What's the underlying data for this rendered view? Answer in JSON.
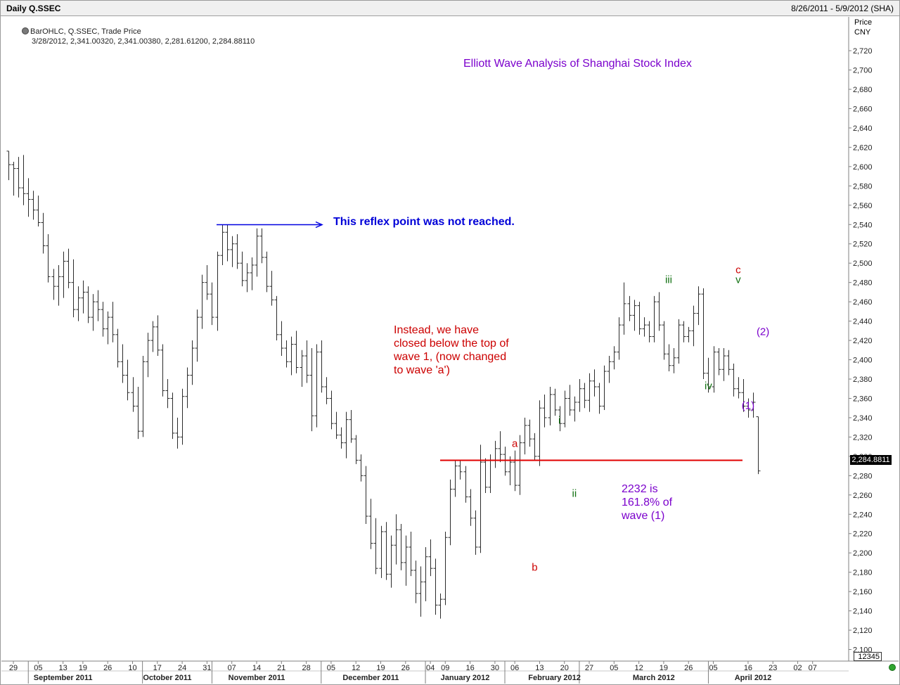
{
  "window": {
    "chart_name": "Daily Q.SSEC",
    "date_range": "8/26/2011 - 5/9/2012 (SHA)"
  },
  "legend": {
    "series": "BarOHLC, Q.SSEC, Trade Price",
    "values": "3/28/2012, 2,341.00320, 2,341.00380, 2,281.61200, 2,284.88110"
  },
  "price_axis": {
    "header": "Price\nCNY",
    "last_price": "2,284.8811",
    "volume_box": "12345"
  },
  "annotations": {
    "title": "Elliott Wave Analysis of Shanghai Stock Index",
    "reflex": "This reflex point was not reached.",
    "instead": "Instead, we have\nclosed below the top of\nwave 1, (now changed\nto wave 'a')",
    "target": "2232 is\n161.8% of\nwave (1)"
  },
  "wave_labels": [
    {
      "text": "a",
      "color": "red",
      "x_index": 102,
      "price": 2313
    },
    {
      "text": "b",
      "color": "red",
      "x_index": 106,
      "price": 2185
    },
    {
      "text": "c",
      "color": "red",
      "x_index": 147,
      "price": 2493
    },
    {
      "text": "i",
      "color": "green",
      "x_index": 111,
      "price": 2337
    },
    {
      "text": "ii",
      "color": "green",
      "x_index": 114,
      "price": 2261
    },
    {
      "text": "iii",
      "color": "green",
      "x_index": 133,
      "price": 2483
    },
    {
      "text": "iv",
      "color": "green",
      "x_index": 141,
      "price": 2373
    },
    {
      "text": "v",
      "color": "green",
      "x_index": 147,
      "price": 2483
    },
    {
      "text": "(1)",
      "color": "purple",
      "x_index": 149,
      "price": 2352
    },
    {
      "text": "(2)",
      "color": "purple",
      "x_index": 152,
      "price": 2429
    }
  ],
  "chart_data": {
    "type": "bar",
    "subtype": "OHLC",
    "ylabel": "Price CNY",
    "ylim": [
      2088,
      2755
    ],
    "y_ticks": [
      2100,
      2120,
      2140,
      2160,
      2180,
      2200,
      2220,
      2240,
      2260,
      2280,
      2300,
      2320,
      2340,
      2360,
      2380,
      2400,
      2420,
      2440,
      2460,
      2480,
      2500,
      2520,
      2540,
      2560,
      2580,
      2600,
      2620,
      2640,
      2660,
      2680,
      2700,
      2720
    ],
    "y_tick_labels": [
      "2,100",
      "2,120",
      "2,140",
      "2,160",
      "2,180",
      "2,200",
      "2,220",
      "2,240",
      "2,260",
      "2,280",
      "2,300",
      "2,320",
      "2,340",
      "2,360",
      "2,380",
      "2,400",
      "2,420",
      "2,440",
      "2,460",
      "2,480",
      "2,500",
      "2,520",
      "2,540",
      "2,560",
      "2,580",
      "2,600",
      "2,620",
      "2,640",
      "2,660",
      "2,680",
      "2,700",
      "2,720"
    ],
    "x_day_ticks": [
      {
        "label": "29",
        "index": 1
      },
      {
        "label": "05",
        "index": 6
      },
      {
        "label": "13",
        "index": 11
      },
      {
        "label": "19",
        "index": 15
      },
      {
        "label": "26",
        "index": 20
      },
      {
        "label": "10",
        "index": 25
      },
      {
        "label": "17",
        "index": 30
      },
      {
        "label": "24",
        "index": 35
      },
      {
        "label": "31",
        "index": 40
      },
      {
        "label": "07",
        "index": 45
      },
      {
        "label": "14",
        "index": 50
      },
      {
        "label": "21",
        "index": 55
      },
      {
        "label": "28",
        "index": 60
      },
      {
        "label": "05",
        "index": 65
      },
      {
        "label": "12",
        "index": 70
      },
      {
        "label": "19",
        "index": 75
      },
      {
        "label": "26",
        "index": 80
      },
      {
        "label": "04",
        "index": 85
      },
      {
        "label": "09",
        "index": 88
      },
      {
        "label": "16",
        "index": 93
      },
      {
        "label": "30",
        "index": 98
      },
      {
        "label": "06",
        "index": 102
      },
      {
        "label": "13",
        "index": 107
      },
      {
        "label": "20",
        "index": 112
      },
      {
        "label": "27",
        "index": 117
      },
      {
        "label": "05",
        "index": 122
      },
      {
        "label": "12",
        "index": 127
      },
      {
        "label": "19",
        "index": 132
      },
      {
        "label": "26",
        "index": 137
      },
      {
        "label": "05",
        "index": 142
      },
      {
        "label": "16",
        "index": 149
      },
      {
        "label": "23",
        "index": 154
      },
      {
        "label": "02",
        "index": 159
      },
      {
        "label": "07",
        "index": 162
      }
    ],
    "x_month_labels": [
      {
        "label": "September 2011",
        "index": 11
      },
      {
        "label": "October 2011",
        "index": 32
      },
      {
        "label": "November 2011",
        "index": 50
      },
      {
        "label": "December 2011",
        "index": 73
      },
      {
        "label": "January 2012",
        "index": 92
      },
      {
        "label": "February 2012",
        "index": 110
      },
      {
        "label": "March 2012",
        "index": 130
      },
      {
        "label": "April 2012",
        "index": 150
      }
    ],
    "x_month_separators": [
      4,
      27,
      41,
      63,
      84,
      100,
      115,
      141
    ],
    "horizontal_levels": [
      {
        "name": "wave-a-top",
        "price": 2296,
        "from_index": 84,
        "to_index": 158,
        "color": "#e00000"
      },
      {
        "name": "reflex-point",
        "price": 2540,
        "from_index": 41,
        "to_index": 61,
        "color": "#0000e0"
      }
    ],
    "bars": [
      [
        2616,
        2586,
        2616,
        2602
      ],
      [
        2602,
        2570,
        2605,
        2598
      ],
      [
        2598,
        2568,
        2610,
        2578
      ],
      [
        2578,
        2560,
        2612,
        2572
      ],
      [
        2572,
        2548,
        2588,
        2566
      ],
      [
        2566,
        2545,
        2575,
        2555
      ],
      [
        2555,
        2538,
        2570,
        2542
      ],
      [
        2542,
        2510,
        2552,
        2518
      ],
      [
        2518,
        2480,
        2530,
        2486
      ],
      [
        2486,
        2462,
        2494,
        2476
      ],
      [
        2476,
        2456,
        2498,
        2486
      ],
      [
        2486,
        2464,
        2512,
        2502
      ],
      [
        2502,
        2474,
        2515,
        2480
      ],
      [
        2480,
        2444,
        2504,
        2452
      ],
      [
        2452,
        2440,
        2476,
        2464
      ],
      [
        2464,
        2448,
        2482,
        2470
      ],
      [
        2470,
        2438,
        2476,
        2444
      ],
      [
        2444,
        2430,
        2468,
        2460
      ],
      [
        2460,
        2440,
        2472,
        2452
      ],
      [
        2452,
        2424,
        2460,
        2432
      ],
      [
        2432,
        2416,
        2450,
        2444
      ],
      [
        2444,
        2418,
        2460,
        2426
      ],
      [
        2426,
        2392,
        2432,
        2398
      ],
      [
        2398,
        2376,
        2416,
        2384
      ],
      [
        2384,
        2358,
        2400,
        2366
      ],
      [
        2366,
        2346,
        2382,
        2352
      ],
      [
        2352,
        2318,
        2372,
        2326
      ],
      [
        2326,
        2320,
        2404,
        2398
      ],
      [
        2398,
        2382,
        2428,
        2420
      ],
      [
        2420,
        2408,
        2440,
        2434
      ],
      [
        2434,
        2404,
        2446,
        2410
      ],
      [
        2410,
        2362,
        2416,
        2368
      ],
      [
        2368,
        2350,
        2380,
        2360
      ],
      [
        2360,
        2318,
        2366,
        2324
      ],
      [
        2324,
        2308,
        2340,
        2320
      ],
      [
        2320,
        2312,
        2370,
        2362
      ],
      [
        2362,
        2350,
        2392,
        2384
      ],
      [
        2384,
        2374,
        2420,
        2412
      ],
      [
        2412,
        2398,
        2452,
        2444
      ],
      [
        2444,
        2432,
        2488,
        2480
      ],
      [
        2480,
        2462,
        2498,
        2468
      ],
      [
        2468,
        2436,
        2480,
        2444
      ],
      [
        2444,
        2430,
        2512,
        2508
      ],
      [
        2508,
        2498,
        2540,
        2532
      ],
      [
        2532,
        2502,
        2540,
        2514
      ],
      [
        2514,
        2496,
        2528,
        2520
      ],
      [
        2520,
        2494,
        2530,
        2500
      ],
      [
        2500,
        2476,
        2512,
        2482
      ],
      [
        2482,
        2470,
        2500,
        2490
      ],
      [
        2490,
        2472,
        2506,
        2498
      ],
      [
        2498,
        2486,
        2536,
        2528
      ],
      [
        2528,
        2500,
        2536,
        2506
      ],
      [
        2506,
        2470,
        2512,
        2476
      ],
      [
        2476,
        2456,
        2492,
        2462
      ],
      [
        2462,
        2420,
        2466,
        2426
      ],
      [
        2426,
        2404,
        2440,
        2412
      ],
      [
        2412,
        2392,
        2420,
        2398
      ],
      [
        2398,
        2384,
        2424,
        2416
      ],
      [
        2416,
        2386,
        2430,
        2392
      ],
      [
        2392,
        2372,
        2410,
        2404
      ],
      [
        2404,
        2376,
        2420,
        2384
      ],
      [
        2384,
        2326,
        2412,
        2342
      ],
      [
        2342,
        2330,
        2416,
        2408
      ],
      [
        2408,
        2366,
        2420,
        2372
      ],
      [
        2372,
        2354,
        2382,
        2360
      ],
      [
        2360,
        2328,
        2368,
        2334
      ],
      [
        2334,
        2318,
        2346,
        2322
      ],
      [
        2322,
        2308,
        2330,
        2314
      ],
      [
        2314,
        2298,
        2346,
        2338
      ],
      [
        2338,
        2314,
        2348,
        2318
      ],
      [
        2318,
        2292,
        2322,
        2296
      ],
      [
        2296,
        2274,
        2302,
        2280
      ],
      [
        2280,
        2230,
        2290,
        2238
      ],
      [
        2238,
        2204,
        2256,
        2210
      ],
      [
        2210,
        2178,
        2236,
        2184
      ],
      [
        2184,
        2174,
        2228,
        2222
      ],
      [
        2222,
        2172,
        2232,
        2178
      ],
      [
        2178,
        2164,
        2218,
        2208
      ],
      [
        2208,
        2188,
        2240,
        2224
      ],
      [
        2224,
        2182,
        2230,
        2190
      ],
      [
        2190,
        2166,
        2218,
        2206
      ],
      [
        2206,
        2176,
        2222,
        2182
      ],
      [
        2182,
        2148,
        2192,
        2158
      ],
      [
        2158,
        2134,
        2186,
        2170
      ],
      [
        2170,
        2150,
        2206,
        2196
      ],
      [
        2196,
        2176,
        2214,
        2184
      ],
      [
        2184,
        2136,
        2194,
        2146
      ],
      [
        2146,
        2132,
        2158,
        2152
      ],
      [
        2152,
        2146,
        2222,
        2216
      ],
      [
        2216,
        2208,
        2276,
        2266
      ],
      [
        2266,
        2258,
        2296,
        2290
      ],
      [
        2290,
        2276,
        2296,
        2284
      ],
      [
        2284,
        2252,
        2290,
        2258
      ],
      [
        2258,
        2228,
        2266,
        2236
      ],
      [
        2236,
        2198,
        2244,
        2206
      ],
      [
        2206,
        2200,
        2312,
        2294
      ],
      [
        2294,
        2262,
        2298,
        2268
      ],
      [
        2268,
        2262,
        2302,
        2296
      ],
      [
        2296,
        2288,
        2316,
        2308
      ],
      [
        2308,
        2294,
        2326,
        2302
      ],
      [
        2302,
        2280,
        2310,
        2284
      ],
      [
        2284,
        2270,
        2300,
        2294
      ],
      [
        2294,
        2264,
        2306,
        2270
      ],
      [
        2270,
        2260,
        2322,
        2314
      ],
      [
        2314,
        2302,
        2340,
        2332
      ],
      [
        2332,
        2310,
        2338,
        2318
      ],
      [
        2318,
        2296,
        2324,
        2300
      ],
      [
        2300,
        2290,
        2358,
        2350
      ],
      [
        2350,
        2330,
        2364,
        2340
      ],
      [
        2340,
        2332,
        2372,
        2364
      ],
      [
        2364,
        2342,
        2370,
        2348
      ],
      [
        2348,
        2326,
        2352,
        2334
      ],
      [
        2334,
        2330,
        2368,
        2360
      ],
      [
        2360,
        2342,
        2374,
        2348
      ],
      [
        2348,
        2336,
        2362,
        2356
      ],
      [
        2356,
        2346,
        2380,
        2370
      ],
      [
        2370,
        2350,
        2376,
        2358
      ],
      [
        2358,
        2346,
        2386,
        2378
      ],
      [
        2378,
        2362,
        2390,
        2372
      ],
      [
        2372,
        2344,
        2376,
        2352
      ],
      [
        2352,
        2348,
        2394,
        2388
      ],
      [
        2388,
        2376,
        2404,
        2398
      ],
      [
        2398,
        2390,
        2414,
        2408
      ],
      [
        2408,
        2400,
        2444,
        2436
      ],
      [
        2436,
        2426,
        2480,
        2458
      ],
      [
        2458,
        2440,
        2466,
        2446
      ],
      [
        2446,
        2430,
        2462,
        2456
      ],
      [
        2456,
        2426,
        2460,
        2432
      ],
      [
        2432,
        2424,
        2444,
        2436
      ],
      [
        2436,
        2418,
        2440,
        2424
      ],
      [
        2424,
        2418,
        2466,
        2460
      ],
      [
        2460,
        2430,
        2470,
        2436
      ],
      [
        2436,
        2400,
        2440,
        2406
      ],
      [
        2406,
        2388,
        2416,
        2394
      ],
      [
        2394,
        2386,
        2412,
        2402
      ],
      [
        2402,
        2396,
        2442,
        2436
      ],
      [
        2436,
        2418,
        2440,
        2424
      ],
      [
        2424,
        2418,
        2434,
        2430
      ],
      [
        2430,
        2414,
        2456,
        2448
      ],
      [
        2448,
        2436,
        2476,
        2468
      ],
      [
        2468,
        2380,
        2474,
        2386
      ],
      [
        2386,
        2366,
        2402,
        2372
      ],
      [
        2372,
        2366,
        2414,
        2408
      ],
      [
        2408,
        2384,
        2412,
        2390
      ],
      [
        2390,
        2378,
        2412,
        2404
      ],
      [
        2404,
        2384,
        2410,
        2390
      ],
      [
        2390,
        2362,
        2396,
        2370
      ],
      [
        2370,
        2360,
        2382,
        2366
      ],
      [
        2366,
        2346,
        2380,
        2352
      ],
      [
        2352,
        2340,
        2360,
        2348
      ],
      [
        2348,
        2340,
        2366,
        2356
      ],
      [
        2341.0032,
        2281.612,
        2341.0038,
        2284.8811
      ]
    ]
  }
}
